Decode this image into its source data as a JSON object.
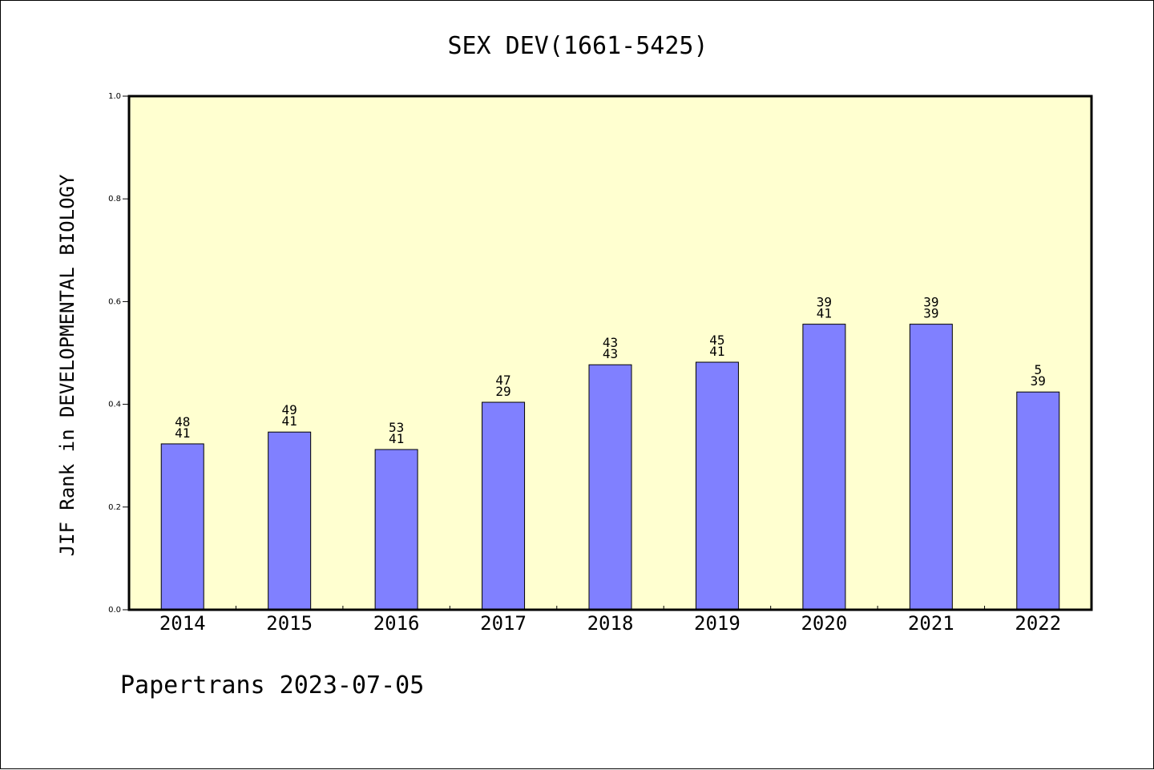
{
  "chart_data": {
    "type": "bar",
    "title": "SEX DEV(1661-5425)",
    "xlabel": "",
    "ylabel": "JIF Rank in DEVELOPMENTAL BIOLOGY",
    "categories": [
      "2014",
      "2015",
      "2016",
      "2017",
      "2018",
      "2019",
      "2020",
      "2021",
      "2022"
    ],
    "values": [
      0.323,
      0.346,
      0.312,
      0.404,
      0.477,
      0.482,
      0.556,
      0.556,
      0.424
    ],
    "bar_labels": [
      [
        "48",
        "41"
      ],
      [
        "49",
        "41"
      ],
      [
        "53",
        "41"
      ],
      [
        "47",
        "29"
      ],
      [
        "43",
        "43"
      ],
      [
        "45",
        "41"
      ],
      [
        "39",
        "41"
      ],
      [
        "39",
        "39"
      ],
      [
        "5",
        "39"
      ]
    ],
    "ylim": [
      0.0,
      1.0
    ],
    "yticks": [
      "0.0",
      "0.2",
      "0.4",
      "0.6",
      "0.8",
      "1.0"
    ],
    "grid": false,
    "colors": {
      "bar": "#8080ff",
      "plot_background": "#ffffd0",
      "axis": "#000000"
    }
  },
  "footer": {
    "text": "Papertrans 2023-07-05"
  }
}
